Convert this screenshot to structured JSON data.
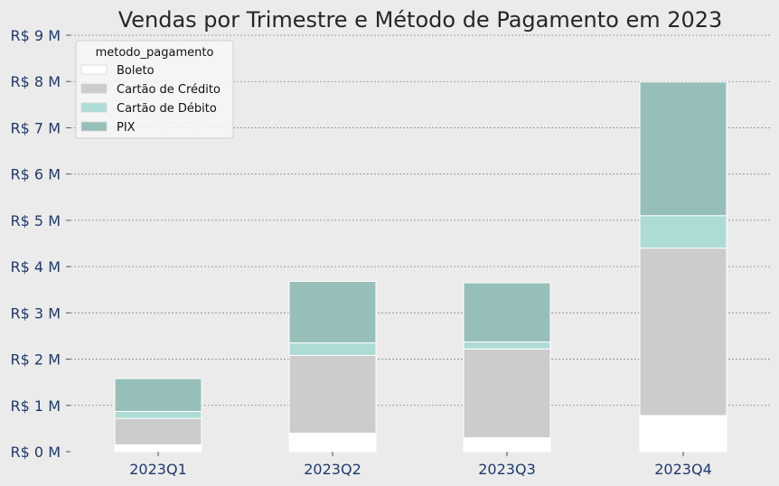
{
  "chart_data": {
    "type": "bar",
    "stacked": true,
    "title": "Vendas por Trimestre e Método de Pagamento em 2023",
    "xlabel": "",
    "ylabel": "",
    "categories": [
      "2023Q1",
      "2023Q2",
      "2023Q3",
      "2023Q4"
    ],
    "ylim": [
      0,
      9
    ],
    "y_ticks": [
      "R$ 0 M",
      "R$ 1 M",
      "R$ 2 M",
      "R$ 3 M",
      "R$ 4 M",
      "R$ 5 M",
      "R$ 6 M",
      "R$ 7 M",
      "R$ 8 M",
      "R$ 9 M"
    ],
    "grid": true,
    "legend": {
      "title": "metodo_pagamento",
      "placement": "top-left"
    },
    "series": [
      {
        "name": "Boleto",
        "color": "#ffffff",
        "values": [
          0.15,
          0.4,
          0.3,
          0.78
        ]
      },
      {
        "name": "Cartão de Crédito",
        "color": "#cccccc",
        "values": [
          0.57,
          1.68,
          1.92,
          3.62
        ]
      },
      {
        "name": "Cartão de Débito",
        "color": "#acdcd5",
        "values": [
          0.15,
          0.27,
          0.15,
          0.7
        ]
      },
      {
        "name": "PIX",
        "color": "#97bfb9",
        "values": [
          0.71,
          1.33,
          1.28,
          2.89
        ]
      }
    ]
  }
}
